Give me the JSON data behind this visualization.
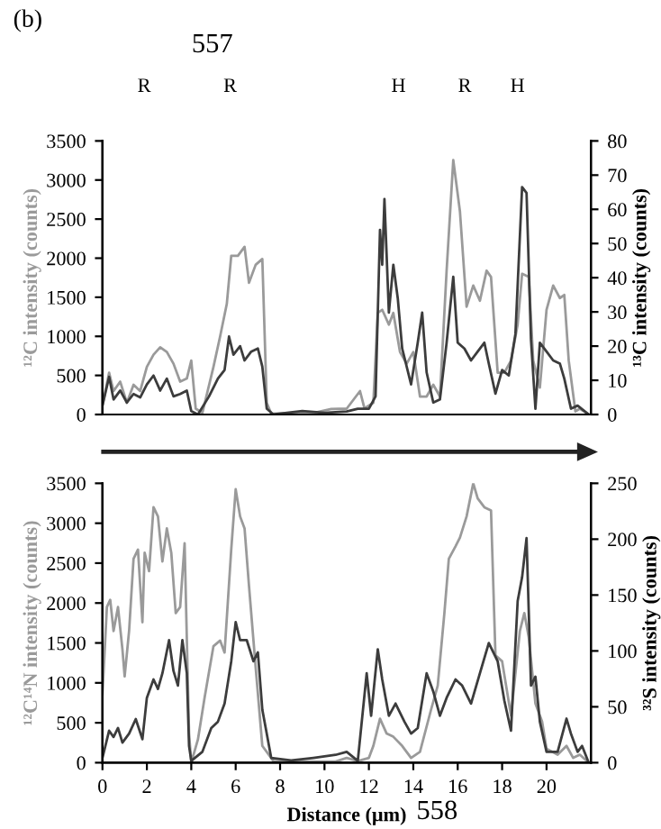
{
  "chart_data": [
    {
      "type": "line",
      "ylabel": "¹²C intensity (counts)",
      "y2label": "¹³C intensity (counts)",
      "annotations": [
        "(b)",
        "557",
        "R",
        "R",
        "H",
        "R",
        "H"
      ],
      "xlim": [
        0,
        22
      ],
      "ylim": [
        0,
        3500
      ],
      "yticks": [
        0,
        500,
        1000,
        1500,
        2000,
        2500,
        3000,
        3500
      ],
      "y2lim": [
        0,
        80
      ],
      "y2ticks": [
        0,
        10,
        20,
        30,
        40,
        50,
        60,
        70,
        80
      ],
      "tick_labels": "y",
      "grid": false,
      "legend": false,
      "marker": "none",
      "line_style": "solid",
      "series": [
        {
          "color": "#9a9a9a",
          "x": [
            0,
            0.3,
            0.5,
            0.8,
            1.1,
            1.4,
            1.7,
            2.0,
            2.3,
            2.6,
            2.9,
            3.2,
            3.5,
            3.8,
            4.0,
            4.2,
            4.5,
            5.0,
            5.3,
            5.6,
            5.8,
            6.1,
            6.4,
            6.6,
            6.9,
            7.2,
            7.4,
            7.6,
            8.5,
            9.5,
            10.3,
            11.0,
            11.6,
            11.8,
            12.2,
            12.4,
            12.6,
            12.9,
            13.1,
            13.4,
            13.7,
            14.0,
            14.3,
            14.6,
            14.9,
            15.2,
            15.5,
            15.8,
            16.1,
            16.4,
            16.7,
            17.0,
            17.3,
            17.5,
            17.8,
            18.1,
            18.4,
            18.7,
            18.9,
            19.2,
            19.4,
            19.7,
            20.0,
            20.3,
            20.6,
            20.8,
            21.0,
            21.3,
            21.5,
            21.9
          ],
          "values": [
            115,
            535,
            300,
            420,
            150,
            380,
            300,
            610,
            765,
            860,
            800,
            650,
            420,
            460,
            690,
            75,
            20,
            610,
            1000,
            1415,
            2030,
            2030,
            2145,
            1685,
            1915,
            1990,
            150,
            10,
            20,
            20,
            70,
            75,
            300,
            80,
            150,
            1300,
            1340,
            1150,
            1300,
            800,
            650,
            800,
            230,
            230,
            380,
            230,
            1840,
            3255,
            2600,
            1380,
            1650,
            1455,
            1840,
            1760,
            535,
            535,
            690,
            1150,
            1800,
            1760,
            690,
            345,
            1340,
            1650,
            1490,
            1530,
            690,
            40,
            75,
            0
          ]
        },
        {
          "color": "#3c3c3c",
          "axis": "y2",
          "x": [
            0,
            0.3,
            0.5,
            0.8,
            1.1,
            1.4,
            1.7,
            2.0,
            2.3,
            2.6,
            2.9,
            3.2,
            3.5,
            3.8,
            4.0,
            4.3,
            4.8,
            5.2,
            5.5,
            5.7,
            5.9,
            6.2,
            6.4,
            6.7,
            7.0,
            7.2,
            7.4,
            7.7,
            9.0,
            10.0,
            11.0,
            11.5,
            12.0,
            12.3,
            12.5,
            12.6,
            12.7,
            12.9,
            13.1,
            13.3,
            13.5,
            13.9,
            14.2,
            14.4,
            14.6,
            14.9,
            15.2,
            15.5,
            15.8,
            16.0,
            16.3,
            16.6,
            16.9,
            17.2,
            17.4,
            17.7,
            18.0,
            18.3,
            18.6,
            18.9,
            19.1,
            19.3,
            19.5,
            19.7,
            20.0,
            20.3,
            20.6,
            20.8,
            21.1,
            21.4,
            21.9
          ],
          "values": [
            2.6,
            11,
            4.4,
            7,
            3.5,
            6,
            5,
            8.8,
            11.4,
            7,
            10.5,
            5.3,
            6,
            7,
            1,
            0,
            5.3,
            10.5,
            13,
            22.8,
            17.5,
            20,
            15.8,
            18.4,
            19.3,
            14,
            1.7,
            0,
            1,
            0.5,
            0.9,
            1.7,
            1.7,
            5.3,
            54,
            43.8,
            63,
            29.8,
            43.8,
            34,
            19.3,
            8.8,
            21,
            29.8,
            12.3,
            3.5,
            4.4,
            21,
            40.3,
            21,
            19.3,
            15.8,
            18.4,
            21,
            14.9,
            6.1,
            13,
            11.4,
            23.6,
            66.5,
            64.8,
            21.9,
            1.7,
            21,
            18.4,
            15.8,
            14.9,
            10.5,
            1.7,
            2.6,
            0
          ]
        }
      ]
    },
    {
      "type": "line",
      "xlabel": "Distance (μm)",
      "ylabel": "¹²C¹⁴N intensity (counts)",
      "y2label": "³²S intensity (counts)",
      "annotations": [
        "558"
      ],
      "xlim": [
        0,
        22
      ],
      "xticks": [
        0,
        2,
        4,
        6,
        8,
        10,
        12,
        14,
        16,
        18,
        20
      ],
      "ylim": [
        0,
        3500
      ],
      "yticks": [
        0,
        500,
        1000,
        1500,
        2000,
        2500,
        3000,
        3500
      ],
      "y2lim": [
        0,
        250
      ],
      "y2ticks": [
        0,
        50,
        100,
        150,
        200,
        250
      ],
      "grid": false,
      "legend": false,
      "marker": "none",
      "line_style": "solid",
      "series": [
        {
          "color": "#9a9a9a",
          "x": [
            0,
            0.2,
            0.35,
            0.5,
            0.7,
            0.9,
            1.0,
            1.2,
            1.4,
            1.6,
            1.8,
            1.9,
            2.1,
            2.3,
            2.5,
            2.7,
            2.9,
            3.1,
            3.3,
            3.5,
            3.7,
            3.9,
            4.0,
            4.3,
            4.6,
            5.0,
            5.3,
            5.5,
            5.8,
            6.0,
            6.2,
            6.4,
            6.6,
            6.9,
            7.2,
            7.7,
            9.0,
            10.5,
            11.0,
            11.5,
            12.0,
            12.2,
            12.5,
            12.8,
            13.1,
            13.5,
            13.9,
            14.3,
            14.8,
            15.1,
            15.4,
            15.6,
            15.9,
            16.1,
            16.4,
            16.7,
            16.9,
            17.2,
            17.5,
            17.7,
            18.0,
            18.4,
            18.8,
            19.0,
            19.2,
            19.5,
            19.8,
            20.0,
            20.5,
            20.9,
            21.2,
            21.5,
            21.9
          ],
          "values": [
            855,
            1950,
            2040,
            1650,
            1950,
            1420,
            1080,
            1650,
            2555,
            2670,
            1760,
            2630,
            2400,
            3200,
            3085,
            2520,
            2935,
            2630,
            1875,
            1950,
            2750,
            365,
            0,
            290,
            815,
            1460,
            1530,
            1380,
            2670,
            3425,
            3085,
            2935,
            2215,
            1195,
            210,
            20,
            15,
            15,
            60,
            20,
            60,
            210,
            550,
            365,
            325,
            210,
            60,
            135,
            665,
            965,
            1875,
            2555,
            2710,
            2820,
            3085,
            3500,
            3310,
            3200,
            3160,
            1345,
            1270,
            590,
            1650,
            1875,
            1570,
            740,
            515,
            175,
            100,
            210,
            60,
            100,
            0
          ]
        },
        {
          "color": "#3c3c3c",
          "axis": "y2",
          "x": [
            0,
            0.3,
            0.5,
            0.7,
            0.9,
            1.2,
            1.5,
            1.8,
            2.0,
            2.3,
            2.5,
            2.7,
            3.0,
            3.2,
            3.4,
            3.6,
            3.8,
            3.9,
            4.0,
            4.5,
            4.9,
            5.2,
            5.5,
            5.8,
            6.0,
            6.2,
            6.5,
            6.8,
            7.0,
            7.2,
            7.6,
            8.5,
            9.5,
            10.5,
            11.0,
            11.5,
            11.9,
            12.1,
            12.4,
            12.6,
            12.9,
            13.2,
            13.6,
            13.9,
            14.2,
            14.6,
            14.9,
            15.2,
            15.5,
            15.9,
            16.2,
            16.6,
            17.0,
            17.4,
            17.8,
            18.1,
            18.4,
            18.7,
            18.9,
            19.1,
            19.3,
            19.5,
            19.7,
            20.0,
            20.5,
            20.9,
            21.1,
            21.4,
            21.6,
            21.9
          ],
          "values": [
            4.3,
            28.6,
            23,
            31,
            18,
            26,
            39,
            21,
            58,
            74.5,
            66,
            80,
            109.6,
            82,
            69,
            109.6,
            80,
            15,
            1.6,
            9.7,
            31,
            36.7,
            52.9,
            90.7,
            125.8,
            109.6,
            109.6,
            90.7,
            98.8,
            47.5,
            4.3,
            2,
            4.3,
            7,
            9.7,
            1.6,
            80,
            42,
            101.5,
            74.5,
            42,
            52.9,
            36.7,
            26,
            31,
            80,
            63.7,
            42,
            58,
            74.5,
            69,
            52.9,
            80,
            107,
            90.7,
            55.6,
            28.6,
            144.7,
            166,
            201,
            69,
            77,
            36.7,
            9.7,
            9.7,
            39.4,
            26,
            9.7,
            15,
            0
          ]
        }
      ]
    }
  ]
}
